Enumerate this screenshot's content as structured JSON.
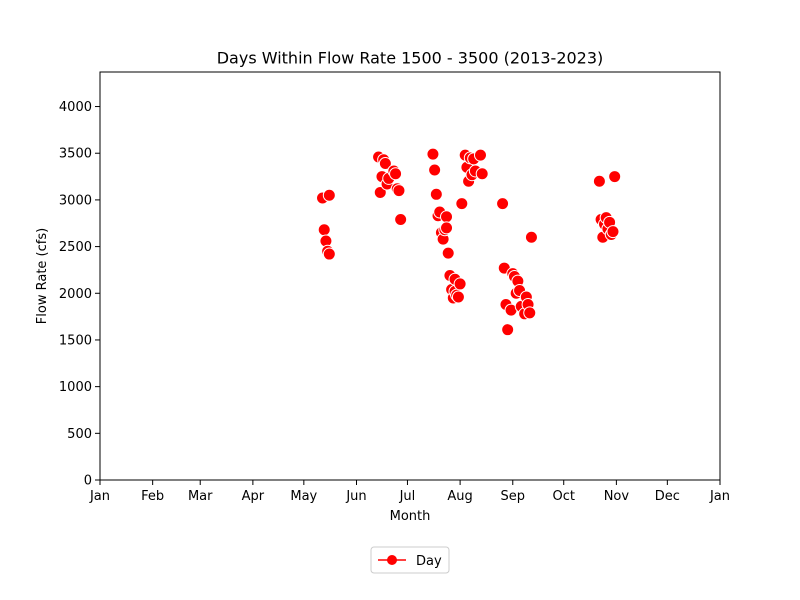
{
  "chart_data": {
    "type": "scatter",
    "title": "Days Within Flow Rate 1500 - 3500 (2013-2023)",
    "xlabel": "Month",
    "ylabel": "Flow Rate (cfs)",
    "x_unit": "day-of-year",
    "xlim": [
      1,
      366
    ],
    "ylim": [
      0,
      4370
    ],
    "x_ticks": [
      {
        "label": "Jan",
        "day": 1
      },
      {
        "label": "Feb",
        "day": 32
      },
      {
        "label": "Mar",
        "day": 60
      },
      {
        "label": "Apr",
        "day": 91
      },
      {
        "label": "May",
        "day": 121
      },
      {
        "label": "Jun",
        "day": 152
      },
      {
        "label": "Jul",
        "day": 182
      },
      {
        "label": "Aug",
        "day": 213
      },
      {
        "label": "Sep",
        "day": 244
      },
      {
        "label": "Oct",
        "day": 274
      },
      {
        "label": "Nov",
        "day": 305
      },
      {
        "label": "Dec",
        "day": 335
      },
      {
        "label": "Jan",
        "day": 366
      }
    ],
    "y_ticks": [
      0,
      500,
      1000,
      1500,
      2000,
      2500,
      3000,
      3500,
      4000
    ],
    "grid": false,
    "legend": {
      "position": "bottom-center",
      "entries": [
        {
          "label": "Day",
          "color": "#ff0000",
          "marker": "circle-line"
        }
      ]
    },
    "series": [
      {
        "name": "Day",
        "color": "#ff0000",
        "points": [
          [
            132,
            3020
          ],
          [
            133,
            2680
          ],
          [
            134,
            2560
          ],
          [
            135,
            2450
          ],
          [
            136,
            3050
          ],
          [
            136,
            2420
          ],
          [
            165,
            3460
          ],
          [
            166,
            3080
          ],
          [
            167,
            3250
          ],
          [
            168,
            3430
          ],
          [
            169,
            3390
          ],
          [
            170,
            3170
          ],
          [
            171,
            3230
          ],
          [
            174,
            3310
          ],
          [
            175,
            3280
          ],
          [
            176,
            3120
          ],
          [
            177,
            3100
          ],
          [
            178,
            2790
          ],
          [
            197,
            3490
          ],
          [
            198,
            3320
          ],
          [
            199,
            3060
          ],
          [
            200,
            2830
          ],
          [
            201,
            2870
          ],
          [
            202,
            2650
          ],
          [
            203,
            2580
          ],
          [
            204,
            2680
          ],
          [
            205,
            2820
          ],
          [
            205,
            2700
          ],
          [
            206,
            2430
          ],
          [
            207,
            2190
          ],
          [
            208,
            2040
          ],
          [
            209,
            1950
          ],
          [
            210,
            2150
          ],
          [
            210,
            2020
          ],
          [
            211,
            1980
          ],
          [
            212,
            1960
          ],
          [
            213,
            2100
          ],
          [
            214,
            2960
          ],
          [
            216,
            3480
          ],
          [
            217,
            3350
          ],
          [
            218,
            3200
          ],
          [
            219,
            3450
          ],
          [
            220,
            3270
          ],
          [
            221,
            3440
          ],
          [
            222,
            3310
          ],
          [
            225,
            3480
          ],
          [
            226,
            3280
          ],
          [
            238,
            2960
          ],
          [
            239,
            2270
          ],
          [
            240,
            1880
          ],
          [
            241,
            1610
          ],
          [
            243,
            1820
          ],
          [
            244,
            2210
          ],
          [
            245,
            2180
          ],
          [
            246,
            2000
          ],
          [
            247,
            2130
          ],
          [
            248,
            2030
          ],
          [
            249,
            1860
          ],
          [
            251,
            1780
          ],
          [
            252,
            1960
          ],
          [
            253,
            1880
          ],
          [
            254,
            1790
          ],
          [
            255,
            2600
          ],
          [
            295,
            3200
          ],
          [
            296,
            2790
          ],
          [
            297,
            2600
          ],
          [
            298,
            2740
          ],
          [
            299,
            2810
          ],
          [
            300,
            2690
          ],
          [
            301,
            2760
          ],
          [
            302,
            2630
          ],
          [
            303,
            2660
          ],
          [
            304,
            3250
          ]
        ]
      }
    ]
  }
}
